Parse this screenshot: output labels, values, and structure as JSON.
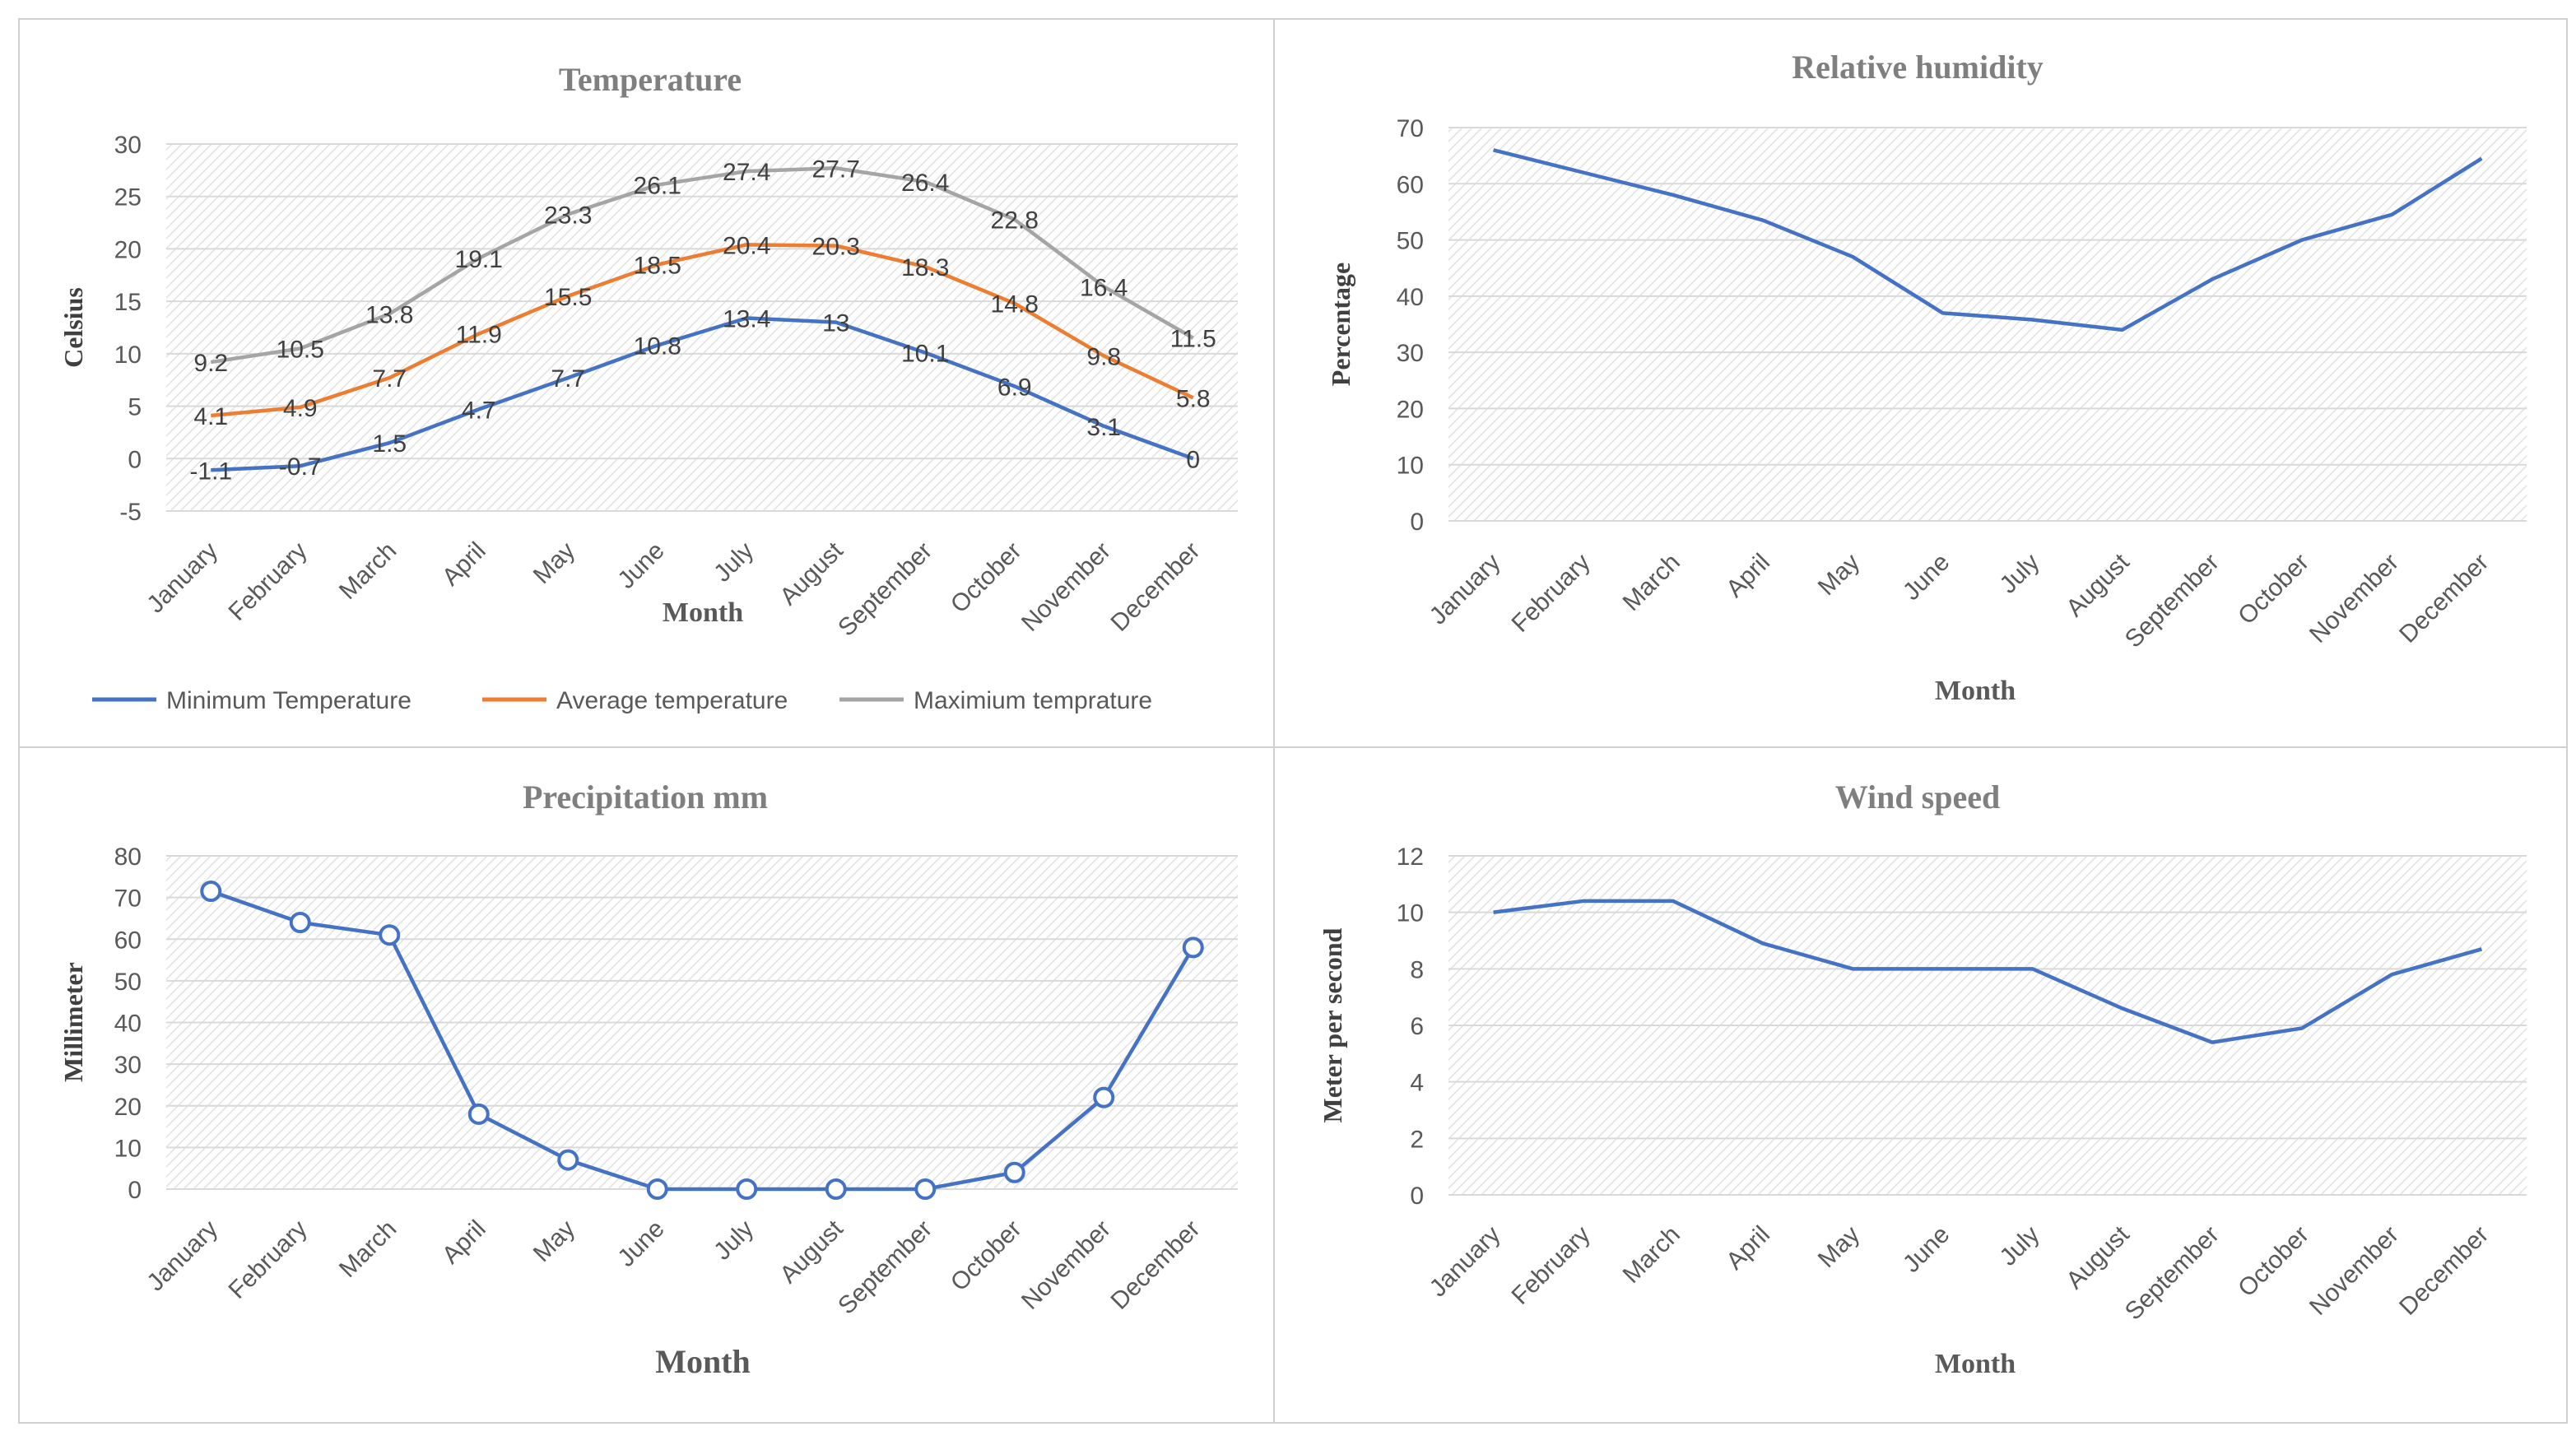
{
  "colors": {
    "blue": "#4472c4",
    "orange": "#ed7d31",
    "gray": "#a5a5a5",
    "title": "#7f7f7f",
    "text": "#595959",
    "grid": "#d9d9d9"
  },
  "chart_data": [
    {
      "type": "line",
      "title": "Temperature",
      "xlabel": "Month",
      "ylabel": "Celsius",
      "ylim": [
        -5,
        30
      ],
      "ytick_step": 5,
      "legend": "bottom",
      "categories": [
        "January",
        "February",
        "March",
        "April",
        "May",
        "June",
        "July",
        "August",
        "September",
        "October",
        "November",
        "December"
      ],
      "series": [
        {
          "name": "Minimum Temperature",
          "color": "#4472c4",
          "values": [
            -1.1,
            -0.7,
            1.5,
            4.7,
            7.7,
            10.8,
            13.4,
            13,
            10.1,
            6.9,
            3.1,
            0
          ],
          "labels": [
            "-1.1",
            "-0.7",
            "1.5",
            "4.7",
            "7.7",
            "10.8",
            "13.4",
            "13",
            "10.1",
            "6.9",
            "3.1",
            "0"
          ]
        },
        {
          "name": "Average temperature",
          "color": "#ed7d31",
          "values": [
            4.1,
            4.9,
            7.7,
            11.9,
            15.5,
            18.5,
            20.4,
            20.3,
            18.3,
            14.8,
            9.8,
            5.8
          ],
          "labels": [
            "4.1",
            "4.9",
            "7.7",
            "11.9",
            "15.5",
            "18.5",
            "20.4",
            "20.3",
            "18.3",
            "14.8",
            "9.8",
            "5.8"
          ]
        },
        {
          "name": "Maximium temprature",
          "color": "#a5a5a5",
          "values": [
            9.2,
            10.5,
            13.8,
            19.1,
            23.3,
            26.1,
            27.4,
            27.7,
            26.4,
            22.8,
            16.4,
            11.5
          ],
          "labels": [
            "9.2",
            "10.5",
            "13.8",
            "19.1",
            "23.3",
            "26.1",
            "27.4",
            "27.7",
            "26.4",
            "22.8",
            "16.4",
            "11.5"
          ]
        }
      ]
    },
    {
      "type": "line",
      "title": "Relative humidity",
      "xlabel": "Month",
      "ylabel": "Percentage",
      "ylim": [
        0,
        70
      ],
      "ytick_step": 10,
      "categories": [
        "January",
        "February",
        "March",
        "April",
        "May",
        "June",
        "July",
        "August",
        "September",
        "October",
        "November",
        "December"
      ],
      "series": [
        {
          "name": "Relative humidity",
          "color": "#4472c4",
          "values": [
            66,
            62,
            58,
            53.5,
            47,
            37,
            35.8,
            34,
            43,
            50,
            54.5,
            64.5
          ]
        }
      ]
    },
    {
      "type": "line",
      "title": "Precipitation mm",
      "xlabel": "Month",
      "ylabel": "Millimeter",
      "ylim": [
        0,
        80
      ],
      "ytick_step": 10,
      "markers": true,
      "categories": [
        "January",
        "February",
        "March",
        "April",
        "May",
        "June",
        "July",
        "August",
        "September",
        "October",
        "November",
        "December"
      ],
      "series": [
        {
          "name": "Precipitation",
          "color": "#4472c4",
          "values": [
            71.5,
            64,
            61,
            18,
            7,
            0,
            0,
            0,
            0,
            4,
            22,
            58
          ]
        }
      ]
    },
    {
      "type": "line",
      "title": "Wind speed",
      "xlabel": "Month",
      "ylabel": "Meter per second",
      "ylim": [
        0,
        12
      ],
      "ytick_step": 2,
      "categories": [
        "January",
        "February",
        "March",
        "April",
        "May",
        "June",
        "July",
        "August",
        "September",
        "October",
        "November",
        "December"
      ],
      "series": [
        {
          "name": "Wind speed",
          "color": "#4472c4",
          "values": [
            10,
            10.4,
            10.4,
            8.9,
            8,
            8,
            8,
            6.6,
            5.4,
            5.9,
            7.8,
            8.7
          ]
        }
      ]
    }
  ]
}
